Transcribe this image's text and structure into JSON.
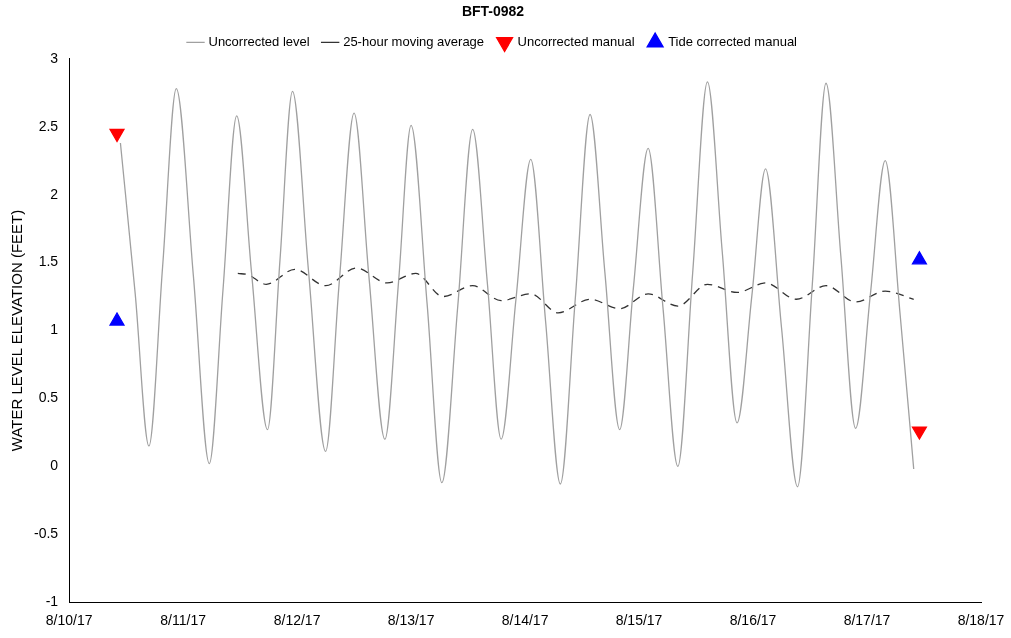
{
  "chart_data": {
    "type": "line",
    "legend_title": "BFT-0982",
    "ylabel": "WATER LEVEL ELEVATION (FEET)",
    "legend": "top",
    "grid": false,
    "xlim": [
      "--08-10",
      "--08-18"
    ],
    "xticks": [
      {
        "value": "--08-10",
        "label": "8/10/17"
      },
      {
        "value": "--08-11",
        "label": "8/11/17"
      },
      {
        "value": "--08-12",
        "label": "8/12/17"
      },
      {
        "value": "--08-13",
        "label": "8/13/17"
      },
      {
        "value": "--08-14",
        "label": "8/14/17"
      },
      {
        "value": "--08-15",
        "label": "8/15/17"
      },
      {
        "value": "--08-16",
        "label": "8/16/17"
      },
      {
        "value": "--08-17",
        "label": "8/17/17"
      },
      {
        "value": "--08-18",
        "label": "8/18/17"
      }
    ],
    "ylim": [
      -1,
      3
    ],
    "yticks": [
      -1,
      -0.5,
      0,
      0.5,
      1,
      1.5,
      2,
      2.5,
      3
    ],
    "series": [
      {
        "name": "Uncorrected level",
        "type": "line",
        "color": "#a0a0a0",
        "marker": "none",
        "line_style": "solid",
        "x": [
          "--08-10T10:48",
          "--08-10T13:55",
          "--08-10T16:48",
          "--08-10T19:41",
          "--08-10T22:34",
          "--08-11T02:10",
          "--08-11T05:31",
          "--08-11T08:24",
          "--08-11T11:17",
          "--08-11T14:24",
          "--08-11T17:46",
          "--08-11T20:24",
          "--08-11T23:02",
          "--08-12T02:24",
          "--08-12T06:00",
          "--08-12T08:53",
          "--08-12T12:00",
          "--08-12T15:07",
          "--08-12T18:29",
          "--08-12T21:22",
          "--08-13T00:00",
          "--08-13T03:22",
          "--08-13T06:29",
          "--08-13T09:50",
          "--08-13T12:58",
          "--08-13T16:05",
          "--08-13T18:58",
          "--08-13T22:05",
          "--08-14T01:12",
          "--08-14T04:19",
          "--08-14T07:26",
          "--08-14T10:34",
          "--08-14T13:41",
          "--08-14T16:48",
          "--08-14T19:55",
          "--08-14T22:48",
          "--08-15T01:55",
          "--08-15T05:02",
          "--08-15T08:10",
          "--08-15T11:17",
          "--08-15T14:24",
          "--08-15T17:31",
          "--08-15T20:38",
          "--08-15T23:46",
          "--08-16T02:38",
          "--08-16T06:00",
          "--08-16T09:22",
          "--08-16T12:29",
          "--08-16T15:22",
          "--08-16T18:29",
          "--08-16T21:36",
          "--08-17T00:43",
          "--08-17T03:50",
          "--08-17T06:58",
          "--08-17T09:50"
        ],
        "values": [
          2.38,
          1.27,
          0.15,
          1.47,
          2.78,
          1.4,
          0.02,
          1.3,
          2.58,
          1.43,
          0.27,
          1.52,
          2.76,
          1.44,
          0.11,
          1.36,
          2.6,
          1.4,
          0.2,
          1.36,
          2.51,
          1.2,
          -0.12,
          1.18,
          2.48,
          1.34,
          0.2,
          1.23,
          2.26,
          1.07,
          -0.13,
          1.23,
          2.59,
          1.43,
          0.27,
          1.31,
          2.34,
          1.17,
          0.0,
          1.42,
          2.83,
          1.58,
          0.32,
          1.26,
          2.19,
          1.02,
          -0.15,
          1.34,
          2.82,
          1.55,
          0.28,
          1.27,
          2.25,
          1.12,
          -0.02
        ]
      },
      {
        "name": "25-hour moving average",
        "type": "line",
        "color": "#333333",
        "marker": "none",
        "line_style": "dashed",
        "x": [
          "--08-11T11:31",
          "--08-11T13:41",
          "--08-11T17:31",
          "--08-11T23:31",
          "--08-12T06:00",
          "--08-12T12:29",
          "--08-12T18:58",
          "--08-13T00:58",
          "--08-13T06:43",
          "--08-13T12:58",
          "--08-13T18:58",
          "--08-14T01:12",
          "--08-14T06:58",
          "--08-14T13:41",
          "--08-14T19:55",
          "--08-15T01:55",
          "--08-15T08:10",
          "--08-15T14:24",
          "--08-15T20:38",
          "--08-16T02:38",
          "--08-16T09:07",
          "--08-16T15:22",
          "--08-16T21:36",
          "--08-17T03:50",
          "--08-17T09:50"
        ],
        "values": [
          1.42,
          1.41,
          1.34,
          1.45,
          1.33,
          1.46,
          1.35,
          1.42,
          1.25,
          1.33,
          1.22,
          1.27,
          1.13,
          1.23,
          1.16,
          1.27,
          1.18,
          1.34,
          1.28,
          1.35,
          1.23,
          1.33,
          1.21,
          1.29,
          1.23
        ]
      },
      {
        "name": "Uncorrected manual",
        "type": "scatter",
        "color": "#ff0000",
        "marker": "triangle-down",
        "x": [
          "--08-10T10:05",
          "--08-17T11:02"
        ],
        "values": [
          2.45,
          0.26
        ]
      },
      {
        "name": "Tide corrected manual",
        "type": "scatter",
        "color": "#0000ff",
        "marker": "triangle",
        "x": [
          "--08-10T10:05",
          "--08-17T11:02"
        ],
        "values": [
          1.07,
          1.52
        ]
      }
    ]
  }
}
